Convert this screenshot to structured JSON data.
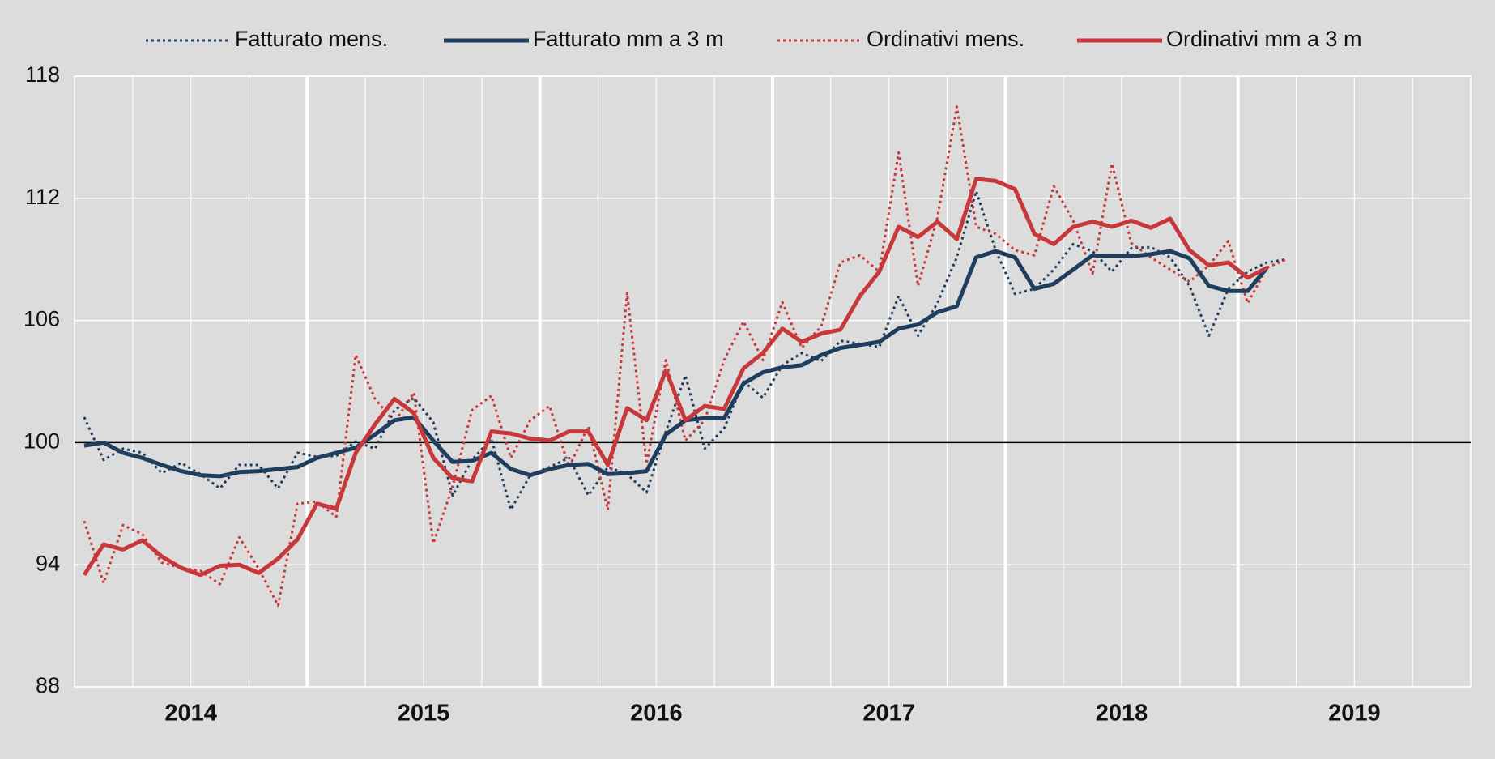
{
  "chart_data": {
    "type": "line",
    "x_labels": [
      "2014",
      "2015",
      "2016",
      "2017",
      "2018",
      "2019"
    ],
    "ylim": [
      88,
      118
    ],
    "yticks": [
      88,
      94,
      100,
      106,
      112,
      118
    ],
    "grid": true,
    "reference_line": 100,
    "series": [
      {
        "name": "Fatturato mens.",
        "color": "#1f3d5c",
        "dotted": true,
        "values": [
          101.25,
          99.15,
          99.7,
          99.5,
          98.5,
          99.0,
          98.45,
          97.75,
          98.9,
          98.9,
          97.75,
          99.5,
          99.3,
          99.35,
          100.05,
          99.7,
          101.6,
          102.2,
          101.0,
          97.4,
          99.15,
          100.2,
          96.7,
          98.4,
          98.8,
          99.25,
          97.4,
          98.8,
          98.45,
          97.55,
          100.55,
          103.3,
          99.7,
          100.7,
          103.0,
          102.2,
          103.8,
          104.4,
          104.0,
          105.0,
          104.85,
          104.7,
          107.2,
          105.25,
          106.85,
          109.1,
          112.35,
          109.45,
          107.3,
          107.55,
          108.5,
          109.75,
          109.4,
          108.4,
          109.55,
          109.6,
          109.1,
          107.7,
          105.25,
          107.55,
          108.4,
          108.85,
          109.0
        ]
      },
      {
        "name": "Fatturato mm a 3 m",
        "color": "#1f3d5c",
        "dotted": false,
        "values": [
          99.85,
          100.0,
          99.5,
          99.25,
          98.9,
          98.6,
          98.4,
          98.35,
          98.55,
          98.6,
          98.7,
          98.8,
          99.25,
          99.5,
          99.75,
          100.4,
          101.1,
          101.25,
          100.1,
          99.05,
          99.1,
          99.5,
          98.7,
          98.4,
          98.7,
          98.9,
          98.95,
          98.45,
          98.5,
          98.6,
          100.4,
          101.1,
          101.2,
          101.2,
          102.9,
          103.45,
          103.7,
          103.8,
          104.3,
          104.65,
          104.8,
          104.95,
          105.6,
          105.8,
          106.4,
          106.7,
          109.1,
          109.4,
          109.1,
          107.55,
          107.8,
          108.5,
          109.2,
          109.15,
          109.15,
          109.25,
          109.4,
          109.05,
          107.7,
          107.45,
          107.45,
          108.6
        ]
      },
      {
        "name": "Ordinativi mens.",
        "color": "#c8383a",
        "dotted": true,
        "values": [
          96.15,
          93.1,
          95.95,
          95.5,
          94.1,
          93.85,
          93.7,
          93.05,
          95.35,
          93.8,
          92.0,
          97.0,
          97.1,
          96.35,
          104.3,
          102.15,
          101.0,
          102.45,
          95.05,
          97.85,
          101.6,
          102.3,
          99.25,
          101.1,
          101.8,
          98.8,
          100.8,
          96.7,
          107.35,
          98.95,
          104.05,
          100.1,
          101.1,
          104.05,
          105.95,
          104.05,
          106.9,
          104.65,
          105.7,
          108.85,
          109.2,
          108.4,
          114.25,
          107.7,
          111.05,
          116.5,
          110.6,
          110.25,
          109.45,
          109.2,
          112.6,
          110.9,
          108.3,
          113.7,
          109.8,
          109.1,
          108.5,
          107.9,
          108.7,
          109.9,
          106.85,
          108.6,
          109.0
        ]
      },
      {
        "name": "Ordinativi mm a 3 m",
        "color": "#c8383a",
        "dotted": false,
        "values": [
          93.5,
          95.0,
          94.75,
          95.2,
          94.4,
          93.85,
          93.5,
          93.95,
          94.0,
          93.6,
          94.3,
          95.25,
          97.0,
          96.75,
          99.5,
          100.9,
          102.15,
          101.45,
          99.25,
          98.25,
          98.1,
          100.55,
          100.45,
          100.2,
          100.1,
          100.55,
          100.55,
          98.9,
          101.7,
          101.1,
          103.55,
          101.1,
          101.8,
          101.65,
          103.65,
          104.4,
          105.6,
          104.95,
          105.35,
          105.55,
          107.2,
          108.4,
          110.6,
          110.1,
          110.85,
          110.0,
          112.95,
          112.85,
          112.45,
          110.25,
          109.75,
          110.6,
          110.85,
          110.6,
          110.9,
          110.55,
          111.0,
          109.45,
          108.7,
          108.85,
          108.1,
          108.6
        ]
      }
    ]
  }
}
